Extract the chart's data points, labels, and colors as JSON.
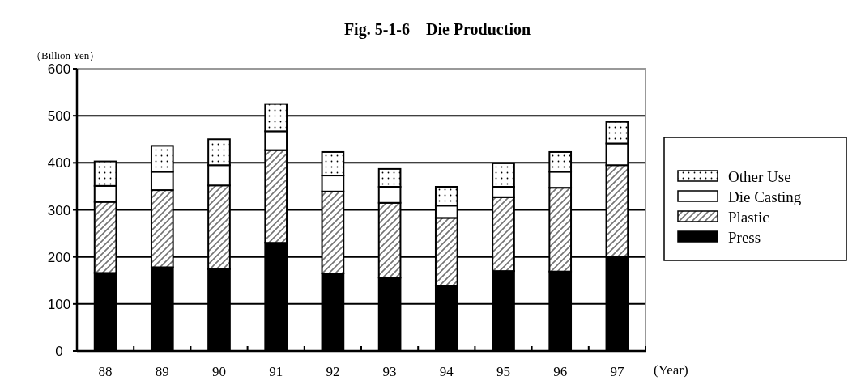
{
  "chart_data": {
    "type": "bar",
    "title": "Fig. 5-1-6    Die Production",
    "ylabel": "（Billion Yen）",
    "xlabel": "(Year)",
    "stacked": true,
    "categories": [
      "88",
      "89",
      "90",
      "91",
      "92",
      "93",
      "94",
      "95",
      "96",
      "97"
    ],
    "series": [
      {
        "name": "Press",
        "color": "#000000",
        "values": [
          166,
          178,
          174,
          230,
          165,
          156,
          139,
          170,
          169,
          201
        ]
      },
      {
        "name": "Plastic",
        "color": "#000000",
        "values": [
          151,
          164,
          178,
          197,
          174,
          159,
          144,
          157,
          178,
          194
        ]
      },
      {
        "name": "Die Casting",
        "color": "#ffffff",
        "values": [
          34,
          39,
          43,
          40,
          34,
          34,
          26,
          22,
          34,
          46
        ]
      },
      {
        "name": "Other Use",
        "color": "#000000",
        "values": [
          52,
          55,
          55,
          58,
          50,
          38,
          40,
          50,
          42,
          46
        ]
      }
    ],
    "ylim": [
      0,
      600
    ],
    "yticks": [
      0,
      100,
      200,
      300,
      400,
      500,
      600
    ],
    "grid": "y",
    "legend": "right"
  }
}
